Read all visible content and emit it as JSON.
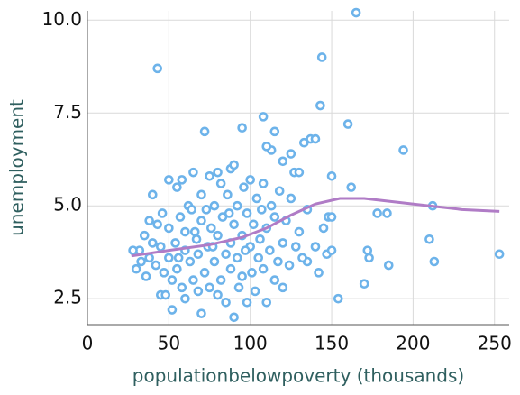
{
  "chart_data": {
    "type": "scatter",
    "xlabel": "populationbelowpoverty (thousands)",
    "ylabel": "unemployment",
    "xlim": [
      0,
      259
    ],
    "ylim": [
      1.8,
      10.25
    ],
    "xticks": [
      0,
      50,
      100,
      150,
      200,
      250
    ],
    "yticks": [
      2.5,
      {
        "value": 5,
        "label": "5.0"
      },
      7.5,
      {
        "value": 10,
        "label": "10.0"
      }
    ],
    "grid": true,
    "color": "#6db3ea",
    "x": [
      43,
      165,
      144,
      143,
      160,
      194,
      154,
      170,
      185,
      213,
      210,
      253,
      172,
      173,
      178,
      184,
      212,
      150,
      148,
      150,
      140,
      135,
      142,
      145,
      147,
      150,
      162,
      137,
      140,
      133,
      120,
      115,
      108,
      113,
      95,
      72,
      127,
      130,
      125,
      110,
      88,
      80,
      30,
      32,
      35,
      36,
      38,
      38,
      40,
      40,
      42,
      43,
      45,
      45,
      46,
      47,
      48,
      50,
      50,
      50,
      52,
      52,
      54,
      55,
      55,
      57,
      58,
      58,
      60,
      60,
      60,
      62,
      63,
      64,
      65,
      65,
      67,
      68,
      68,
      70,
      70,
      70,
      72,
      73,
      74,
      75,
      75,
      76,
      78,
      78,
      80,
      80,
      82,
      82,
      83,
      85,
      85,
      86,
      88,
      88,
      90,
      90,
      90,
      92,
      92,
      93,
      95,
      95,
      96,
      98,
      98,
      100,
      100,
      101,
      102,
      103,
      104,
      105,
      106,
      108,
      108,
      110,
      110,
      112,
      113,
      115,
      115,
      117,
      118,
      120,
      120,
      122,
      124,
      125,
      128,
      130,
      132,
      135,
      28,
      33,
      56,
      66,
      77,
      87,
      97,
      107
    ],
    "values": [
      8.7,
      10.2,
      9.0,
      7.7,
      7.2,
      6.5,
      2.5,
      2.9,
      3.4,
      3.5,
      4.1,
      3.7,
      3.8,
      3.6,
      4.8,
      4.8,
      5.0,
      5.8,
      4.7,
      4.7,
      3.9,
      3.5,
      3.2,
      4.4,
      3.7,
      3.8,
      5.5,
      6.8,
      6.8,
      6.7,
      6.2,
      7.0,
      7.4,
      6.5,
      7.1,
      7.0,
      5.9,
      5.9,
      6.4,
      6.6,
      6.0,
      5.9,
      3.3,
      3.8,
      4.2,
      3.1,
      4.6,
      3.6,
      5.3,
      4.0,
      3.4,
      4.5,
      2.6,
      3.9,
      4.8,
      3.2,
      2.6,
      5.7,
      4.4,
      3.6,
      3.0,
      2.2,
      4.0,
      5.5,
      3.3,
      4.7,
      2.8,
      5.7,
      3.8,
      4.3,
      2.5,
      5.0,
      3.5,
      4.9,
      3.0,
      5.9,
      4.1,
      2.7,
      3.7,
      5.3,
      4.6,
      2.1,
      3.2,
      4.9,
      3.9,
      5.8,
      2.8,
      4.4,
      3.5,
      5.0,
      4.2,
      2.6,
      3.0,
      5.6,
      4.7,
      3.7,
      2.4,
      5.3,
      4.0,
      3.3,
      6.1,
      4.5,
      2.0,
      3.6,
      5.0,
      2.8,
      4.2,
      3.1,
      5.5,
      4.8,
      2.4,
      3.9,
      5.7,
      3.2,
      4.5,
      2.7,
      5.2,
      3.6,
      4.1,
      3.3,
      5.6,
      2.4,
      4.4,
      3.8,
      5.0,
      3.0,
      4.7,
      3.5,
      5.4,
      4.0,
      2.8,
      4.6,
      3.4,
      5.2,
      3.9,
      4.3,
      3.6,
      4.9,
      3.8,
      3.5,
      3.6,
      4.3,
      3.9,
      4.8,
      3.8,
      4.9
    ],
    "trend": {
      "color": "#b07cc6",
      "x": [
        27,
        50,
        75,
        95,
        110,
        125,
        140,
        155,
        170,
        190,
        210,
        230,
        253
      ],
      "values": [
        3.65,
        3.8,
        3.95,
        4.15,
        4.4,
        4.75,
        5.05,
        5.2,
        5.2,
        5.1,
        5.0,
        4.9,
        4.85
      ]
    }
  }
}
